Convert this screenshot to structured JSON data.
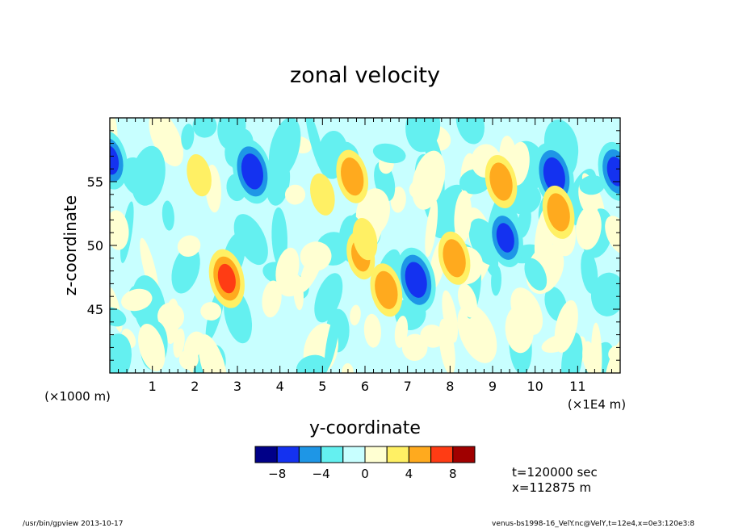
{
  "chart_data": {
    "type": "heatmap",
    "title": "zonal velocity",
    "xlabel": "y-coordinate",
    "ylabel": "z-coordinate",
    "x_unit_left": "(×1000 m)",
    "x_unit_right": "(×1E4 m)",
    "xlim": [
      0,
      12
    ],
    "ylim": [
      40,
      60
    ],
    "xticks": [
      1,
      2,
      3,
      4,
      5,
      6,
      7,
      8,
      9,
      10,
      11
    ],
    "xtick_labels": [
      "1",
      "2",
      "3",
      "4",
      "5",
      "6",
      "7",
      "8",
      "9",
      "10",
      "11"
    ],
    "yticks": [
      45,
      50,
      55
    ],
    "ytick_labels": [
      "45",
      "50",
      "55"
    ],
    "colorbar": {
      "levels": [
        -10,
        -8,
        -6,
        -4,
        -2,
        0,
        2,
        4,
        6,
        8,
        10
      ],
      "tick_values": [
        -8,
        -4,
        0,
        4,
        8
      ],
      "tick_labels": [
        "−8",
        "−4",
        "0",
        "4",
        "8"
      ],
      "colors": [
        "#000088",
        "#1432f0",
        "#1e96e6",
        "#64f0f0",
        "#c8ffff",
        "#ffffd2",
        "#fff064",
        "#ffaa1e",
        "#ff3c14",
        "#a00000"
      ]
    },
    "features": [
      {
        "y": 0.0,
        "z": 56.7,
        "value": -6
      },
      {
        "y": 3.35,
        "z": 55.8,
        "value": -7
      },
      {
        "y": 5.7,
        "z": 55.4,
        "value": 5
      },
      {
        "y": 9.2,
        "z": 55.0,
        "value": 5
      },
      {
        "y": 10.45,
        "z": 55.5,
        "value": -7
      },
      {
        "y": 11.9,
        "z": 55.8,
        "value": -6
      },
      {
        "y": 2.75,
        "z": 47.4,
        "value": 6
      },
      {
        "y": 7.2,
        "z": 47.3,
        "value": -7
      },
      {
        "y": 8.1,
        "z": 49.0,
        "value": 5
      },
      {
        "y": 6.5,
        "z": 46.5,
        "value": 5
      },
      {
        "y": 9.3,
        "z": 50.6,
        "value": -6
      },
      {
        "y": 10.55,
        "z": 52.6,
        "value": 5
      },
      {
        "y": 5.9,
        "z": 49.2,
        "value": 4
      },
      {
        "y": 2.1,
        "z": 55.5,
        "value": 3
      },
      {
        "y": 5.0,
        "z": 54.0,
        "value": 3
      },
      {
        "y": 6.0,
        "z": 50.5,
        "value": 3
      }
    ],
    "annotations": [
      "t=120000 sec",
      "x=112875 m"
    ]
  },
  "footer": {
    "left": "/usr/bin/gpview  2013-10-17",
    "right": "venus-bs1998-16_VelY.nc@VelY,t=12e4,x=0e3:120e3:8"
  }
}
